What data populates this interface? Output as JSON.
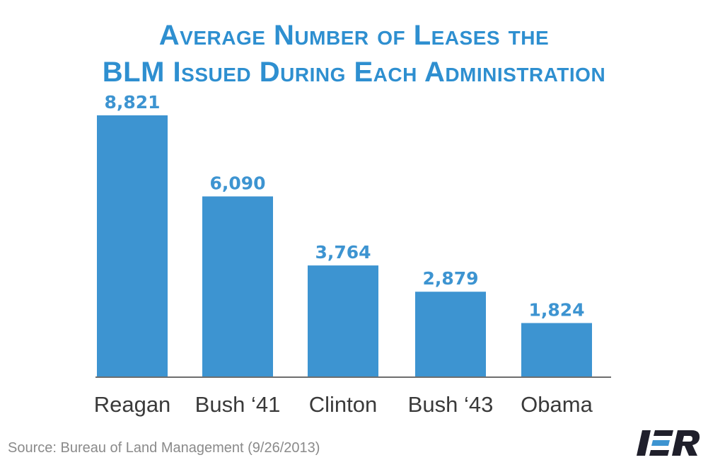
{
  "chart_data": {
    "type": "bar",
    "title_lines": [
      "Average Number of Leases the",
      "BLM Issued During Each Administration"
    ],
    "categories": [
      "Reagan",
      "Bush ‘41",
      "Clinton",
      "Bush ‘43",
      "Obama"
    ],
    "values": [
      8821,
      6090,
      3764,
      2879,
      1824
    ],
    "value_labels": [
      "8,821",
      "6,090",
      "3,764",
      "2,879",
      "1,824"
    ],
    "ylim": [
      0,
      10000
    ],
    "grid": false,
    "bar_color": "#3d94d1",
    "title_color": "#2e8fd0"
  },
  "source": "Source: Bureau of Land Management (9/26/2013)",
  "logo": {
    "text": "IER",
    "icon": "ier-logo"
  }
}
